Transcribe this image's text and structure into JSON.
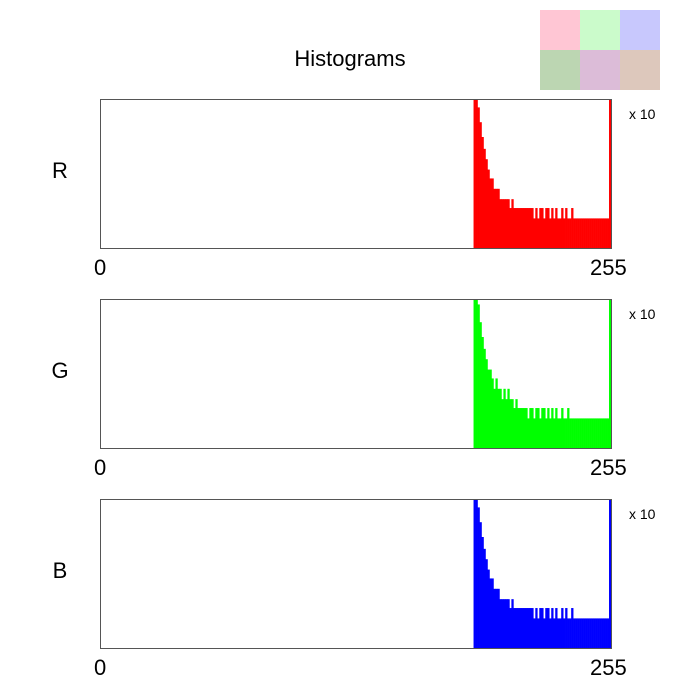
{
  "title": "Histograms",
  "scale_label": "x 10",
  "swatches": [
    {
      "color": "#ffc6d4"
    },
    {
      "color": "#cbfbcb"
    },
    {
      "color": "#c8c8fd"
    },
    {
      "color": "#bcd6b2"
    },
    {
      "color": "#dcbcd8"
    },
    {
      "color": "#ddc8bc"
    }
  ],
  "chart_data": [
    {
      "type": "bar",
      "label": "R",
      "color": "#ff0000",
      "x_tick_labels": [
        "0",
        "255"
      ],
      "xlim": [
        0,
        255
      ],
      "scale_label": "x 10",
      "bins": [
        [
          187,
          100
        ],
        [
          188,
          100
        ],
        [
          189,
          95
        ],
        [
          190,
          85
        ],
        [
          191,
          75
        ],
        [
          192,
          67
        ],
        [
          193,
          60
        ],
        [
          194,
          53
        ],
        [
          195,
          47
        ],
        [
          196,
          47
        ],
        [
          197,
          40
        ],
        [
          198,
          40
        ],
        [
          199,
          40
        ],
        [
          200,
          33
        ],
        [
          201,
          33
        ],
        [
          202,
          33
        ],
        [
          203,
          33
        ],
        [
          204,
          33
        ],
        [
          205,
          27
        ],
        [
          206,
          33
        ],
        [
          207,
          27
        ],
        [
          208,
          27
        ],
        [
          209,
          27
        ],
        [
          210,
          27
        ],
        [
          211,
          27
        ],
        [
          212,
          27
        ],
        [
          213,
          27
        ],
        [
          214,
          27
        ],
        [
          215,
          27
        ],
        [
          216,
          27
        ],
        [
          217,
          20
        ],
        [
          218,
          27
        ],
        [
          219,
          20
        ],
        [
          220,
          27
        ],
        [
          221,
          27
        ],
        [
          222,
          20
        ],
        [
          223,
          27
        ],
        [
          224,
          27
        ],
        [
          225,
          20
        ],
        [
          226,
          27
        ],
        [
          227,
          20
        ],
        [
          228,
          27
        ],
        [
          229,
          20
        ],
        [
          230,
          20
        ],
        [
          231,
          27
        ],
        [
          232,
          20
        ],
        [
          233,
          27
        ],
        [
          234,
          20
        ],
        [
          235,
          20
        ],
        [
          236,
          27
        ],
        [
          237,
          20
        ],
        [
          238,
          20
        ],
        [
          239,
          20
        ],
        [
          240,
          20
        ],
        [
          241,
          20
        ],
        [
          242,
          20
        ],
        [
          243,
          20
        ],
        [
          244,
          20
        ],
        [
          245,
          20
        ],
        [
          246,
          20
        ],
        [
          247,
          20
        ],
        [
          248,
          20
        ],
        [
          249,
          20
        ],
        [
          250,
          20
        ],
        [
          251,
          20
        ],
        [
          252,
          20
        ],
        [
          253,
          20
        ],
        [
          254,
          20
        ],
        [
          255,
          100
        ]
      ]
    },
    {
      "type": "bar",
      "label": "G",
      "color": "#00ff00",
      "x_tick_labels": [
        "0",
        "255"
      ],
      "xlim": [
        0,
        255
      ],
      "scale_label": "x 10",
      "bins": [
        [
          187,
          100
        ],
        [
          188,
          100
        ],
        [
          189,
          97
        ],
        [
          190,
          85
        ],
        [
          191,
          75
        ],
        [
          192,
          67
        ],
        [
          193,
          60
        ],
        [
          194,
          53
        ],
        [
          195,
          53
        ],
        [
          196,
          47
        ],
        [
          197,
          40
        ],
        [
          198,
          47
        ],
        [
          199,
          40
        ],
        [
          200,
          40
        ],
        [
          201,
          33
        ],
        [
          202,
          40
        ],
        [
          203,
          33
        ],
        [
          204,
          40
        ],
        [
          205,
          33
        ],
        [
          206,
          33
        ],
        [
          207,
          27
        ],
        [
          208,
          33
        ],
        [
          209,
          27
        ],
        [
          210,
          27
        ],
        [
          211,
          27
        ],
        [
          212,
          27
        ],
        [
          213,
          27
        ],
        [
          214,
          20
        ],
        [
          215,
          27
        ],
        [
          216,
          27
        ],
        [
          217,
          20
        ],
        [
          218,
          27
        ],
        [
          219,
          27
        ],
        [
          220,
          20
        ],
        [
          221,
          27
        ],
        [
          222,
          27
        ],
        [
          223,
          20
        ],
        [
          224,
          27
        ],
        [
          225,
          20
        ],
        [
          226,
          27
        ],
        [
          227,
          20
        ],
        [
          228,
          27
        ],
        [
          229,
          20
        ],
        [
          230,
          20
        ],
        [
          231,
          27
        ],
        [
          232,
          20
        ],
        [
          233,
          20
        ],
        [
          234,
          27
        ],
        [
          235,
          20
        ],
        [
          236,
          20
        ],
        [
          237,
          20
        ],
        [
          238,
          20
        ],
        [
          239,
          20
        ],
        [
          240,
          20
        ],
        [
          241,
          20
        ],
        [
          242,
          20
        ],
        [
          243,
          20
        ],
        [
          244,
          20
        ],
        [
          245,
          20
        ],
        [
          246,
          20
        ],
        [
          247,
          20
        ],
        [
          248,
          20
        ],
        [
          249,
          20
        ],
        [
          250,
          20
        ],
        [
          251,
          20
        ],
        [
          252,
          20
        ],
        [
          253,
          20
        ],
        [
          254,
          20
        ],
        [
          255,
          100
        ]
      ]
    },
    {
      "type": "bar",
      "label": "B",
      "color": "#0000ff",
      "x_tick_labels": [
        "0",
        "255"
      ],
      "xlim": [
        0,
        255
      ],
      "scale_label": "x 10",
      "bins": [
        [
          187,
          100
        ],
        [
          188,
          100
        ],
        [
          189,
          95
        ],
        [
          190,
          85
        ],
        [
          191,
          75
        ],
        [
          192,
          67
        ],
        [
          193,
          60
        ],
        [
          194,
          53
        ],
        [
          195,
          47
        ],
        [
          196,
          47
        ],
        [
          197,
          40
        ],
        [
          198,
          40
        ],
        [
          199,
          40
        ],
        [
          200,
          33
        ],
        [
          201,
          33
        ],
        [
          202,
          33
        ],
        [
          203,
          33
        ],
        [
          204,
          33
        ],
        [
          205,
          27
        ],
        [
          206,
          33
        ],
        [
          207,
          27
        ],
        [
          208,
          27
        ],
        [
          209,
          27
        ],
        [
          210,
          27
        ],
        [
          211,
          27
        ],
        [
          212,
          27
        ],
        [
          213,
          27
        ],
        [
          214,
          27
        ],
        [
          215,
          27
        ],
        [
          216,
          27
        ],
        [
          217,
          20
        ],
        [
          218,
          27
        ],
        [
          219,
          20
        ],
        [
          220,
          27
        ],
        [
          221,
          27
        ],
        [
          222,
          20
        ],
        [
          223,
          27
        ],
        [
          224,
          27
        ],
        [
          225,
          20
        ],
        [
          226,
          27
        ],
        [
          227,
          20
        ],
        [
          228,
          27
        ],
        [
          229,
          20
        ],
        [
          230,
          20
        ],
        [
          231,
          27
        ],
        [
          232,
          20
        ],
        [
          233,
          27
        ],
        [
          234,
          20
        ],
        [
          235,
          20
        ],
        [
          236,
          27
        ],
        [
          237,
          20
        ],
        [
          238,
          20
        ],
        [
          239,
          20
        ],
        [
          240,
          20
        ],
        [
          241,
          20
        ],
        [
          242,
          20
        ],
        [
          243,
          20
        ],
        [
          244,
          20
        ],
        [
          245,
          20
        ],
        [
          246,
          20
        ],
        [
          247,
          20
        ],
        [
          248,
          20
        ],
        [
          249,
          20
        ],
        [
          250,
          20
        ],
        [
          251,
          20
        ],
        [
          252,
          20
        ],
        [
          253,
          20
        ],
        [
          254,
          20
        ],
        [
          255,
          100
        ]
      ]
    }
  ]
}
